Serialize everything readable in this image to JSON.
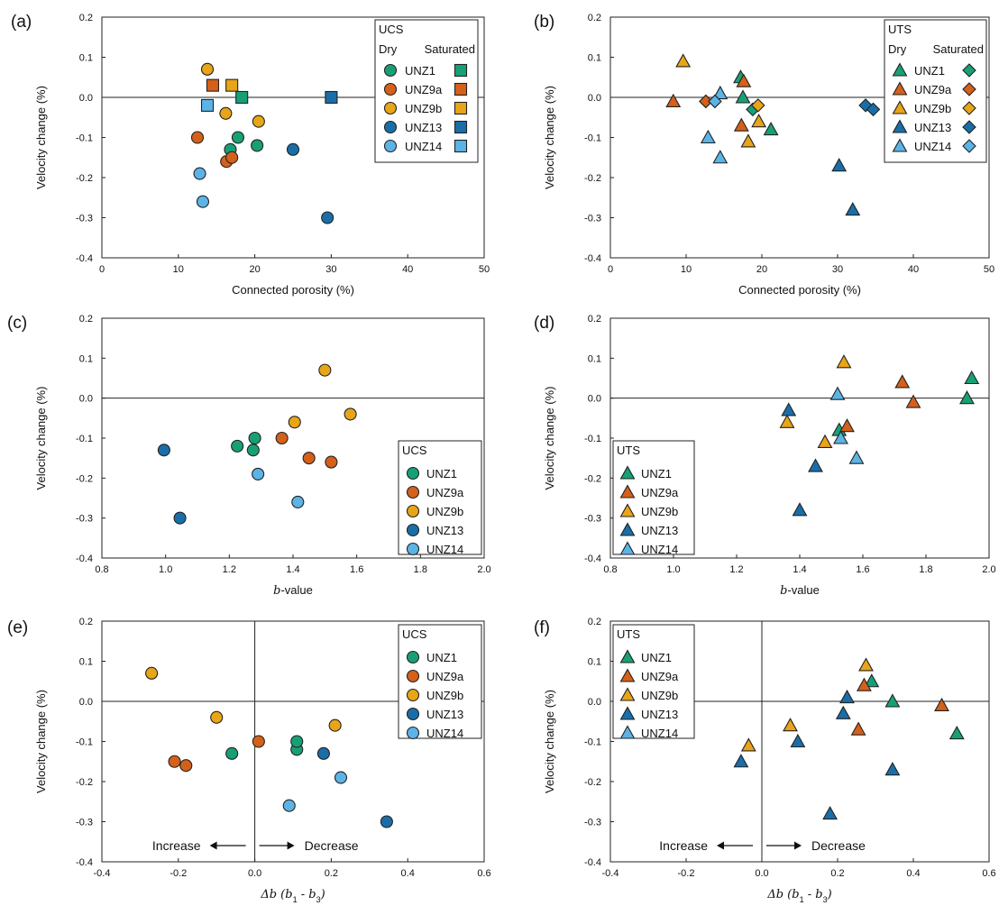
{
  "colors": {
    "UNZ1": "#17a076",
    "UNZ9a": "#d4601a",
    "UNZ9b": "#e8a517",
    "UNZ13": "#1a6ea8",
    "UNZ14": "#5cb3e6"
  },
  "chart_data": [
    {
      "panel": "(a)",
      "type": "scatter",
      "xlabel": "Connected porosity (%)",
      "ylabel": "Velocity change (%)",
      "xlim": [
        0,
        50
      ],
      "ylim": [
        -0.4,
        0.2
      ],
      "xticks": [
        "0",
        "10",
        "20",
        "30",
        "40",
        "50"
      ],
      "yticks": [
        "-0.4",
        "-0.3",
        "-0.2",
        "-0.1",
        "0.0",
        "0.1",
        "0.2"
      ],
      "legend": {
        "position": "top-right",
        "title": "UCS",
        "subtitle_dry": "Dry",
        "subtitle_sat": "Saturated",
        "labels": [
          "UNZ1",
          "UNZ9a",
          "UNZ9b",
          "UNZ13",
          "UNZ14"
        ]
      },
      "series": [
        {
          "name": "UNZ1",
          "condition": "Dry",
          "marker": "circle",
          "points": [
            [
              16.8,
              -0.13
            ],
            [
              17.8,
              -0.1
            ],
            [
              20.3,
              -0.12
            ]
          ]
        },
        {
          "name": "UNZ9a",
          "condition": "Dry",
          "marker": "circle",
          "points": [
            [
              12.5,
              -0.1
            ],
            [
              16.3,
              -0.16
            ],
            [
              17.0,
              -0.15
            ]
          ]
        },
        {
          "name": "UNZ9b",
          "condition": "Dry",
          "marker": "circle",
          "points": [
            [
              13.8,
              0.07
            ],
            [
              16.2,
              -0.04
            ],
            [
              20.5,
              -0.06
            ]
          ]
        },
        {
          "name": "UNZ13",
          "condition": "Dry",
          "marker": "circle",
          "points": [
            [
              25.0,
              -0.13
            ],
            [
              29.5,
              -0.3
            ]
          ]
        },
        {
          "name": "UNZ14",
          "condition": "Dry",
          "marker": "circle",
          "points": [
            [
              12.8,
              -0.19
            ],
            [
              13.2,
              -0.26
            ]
          ]
        },
        {
          "name": "UNZ1",
          "condition": "Saturated",
          "marker": "square",
          "points": [
            [
              18.3,
              0.0
            ]
          ]
        },
        {
          "name": "UNZ9a",
          "condition": "Saturated",
          "marker": "square",
          "points": [
            [
              14.5,
              0.03
            ]
          ]
        },
        {
          "name": "UNZ9b",
          "condition": "Saturated",
          "marker": "square",
          "points": [
            [
              17.0,
              0.03
            ]
          ]
        },
        {
          "name": "UNZ13",
          "condition": "Saturated",
          "marker": "square",
          "points": [
            [
              30.0,
              0.0
            ]
          ]
        },
        {
          "name": "UNZ14",
          "condition": "Saturated",
          "marker": "square",
          "points": [
            [
              13.8,
              -0.02
            ]
          ]
        }
      ]
    },
    {
      "panel": "(b)",
      "type": "scatter",
      "xlabel": "Connected porosity (%)",
      "ylabel": "Velocity change (%)",
      "xlim": [
        0,
        50
      ],
      "ylim": [
        -0.4,
        0.2
      ],
      "xticks": [
        "0",
        "10",
        "20",
        "30",
        "40",
        "50"
      ],
      "yticks": [
        "-0.4",
        "-0.3",
        "-0.2",
        "-0.1",
        "0.0",
        "0.1",
        "0.2"
      ],
      "legend": {
        "position": "top-right",
        "title": "UTS",
        "subtitle_dry": "Dry",
        "subtitle_sat": "Saturated",
        "labels": [
          "UNZ1",
          "UNZ9a",
          "UNZ9b",
          "UNZ13",
          "UNZ14"
        ]
      },
      "series": [
        {
          "name": "UNZ1",
          "condition": "Dry",
          "marker": "triangle",
          "points": [
            [
              17.2,
              0.05
            ],
            [
              17.5,
              0.0
            ],
            [
              21.2,
              -0.08
            ]
          ]
        },
        {
          "name": "UNZ9a",
          "condition": "Dry",
          "marker": "triangle",
          "points": [
            [
              8.3,
              -0.01
            ],
            [
              17.3,
              -0.07
            ],
            [
              17.6,
              0.04
            ]
          ]
        },
        {
          "name": "UNZ9b",
          "condition": "Dry",
          "marker": "triangle",
          "points": [
            [
              9.6,
              0.09
            ],
            [
              18.2,
              -0.11
            ],
            [
              19.6,
              -0.06
            ]
          ]
        },
        {
          "name": "UNZ13",
          "condition": "Dry",
          "marker": "triangle",
          "points": [
            [
              30.2,
              -0.17
            ],
            [
              32.0,
              -0.28
            ]
          ]
        },
        {
          "name": "UNZ14",
          "condition": "Dry",
          "marker": "triangle",
          "points": [
            [
              12.9,
              -0.1
            ],
            [
              14.5,
              0.01
            ],
            [
              14.5,
              -0.15
            ]
          ]
        },
        {
          "name": "UNZ1",
          "condition": "Saturated",
          "marker": "diamond",
          "points": [
            [
              18.8,
              -0.03
            ]
          ]
        },
        {
          "name": "UNZ9a",
          "condition": "Saturated",
          "marker": "diamond",
          "points": [
            [
              12.6,
              -0.01
            ]
          ]
        },
        {
          "name": "UNZ9b",
          "condition": "Saturated",
          "marker": "diamond",
          "points": [
            [
              19.5,
              -0.02
            ]
          ]
        },
        {
          "name": "UNZ13",
          "condition": "Saturated",
          "marker": "diamond",
          "points": [
            [
              33.7,
              -0.02
            ],
            [
              34.7,
              -0.03
            ]
          ]
        },
        {
          "name": "UNZ14",
          "condition": "Saturated",
          "marker": "diamond",
          "points": [
            [
              13.8,
              -0.01
            ]
          ]
        }
      ]
    },
    {
      "panel": "(c)",
      "type": "scatter",
      "xlabel": "b-value",
      "ylabel": "Velocity change (%)",
      "xlim": [
        0.8,
        2.0
      ],
      "ylim": [
        -0.4,
        0.2
      ],
      "xticks": [
        "0.8",
        "1.0",
        "1.2",
        "1.4",
        "1.6",
        "1.8",
        "2.0"
      ],
      "yticks": [
        "-0.4",
        "-0.3",
        "-0.2",
        "-0.1",
        "0.0",
        "0.1",
        "0.2"
      ],
      "legend": {
        "position": "bottom-right",
        "title": "UCS",
        "labels": [
          "UNZ1",
          "UNZ9a",
          "UNZ9b",
          "UNZ13",
          "UNZ14"
        ]
      },
      "series": [
        {
          "name": "UNZ1",
          "marker": "circle",
          "points": [
            [
              1.225,
              -0.12
            ],
            [
              1.275,
              -0.13
            ],
            [
              1.28,
              -0.1
            ]
          ]
        },
        {
          "name": "UNZ9a",
          "marker": "circle",
          "points": [
            [
              1.365,
              -0.1
            ],
            [
              1.45,
              -0.15
            ],
            [
              1.52,
              -0.16
            ]
          ]
        },
        {
          "name": "UNZ9b",
          "marker": "circle",
          "points": [
            [
              1.405,
              -0.06
            ],
            [
              1.5,
              0.07
            ],
            [
              1.58,
              -0.04
            ]
          ]
        },
        {
          "name": "UNZ13",
          "marker": "circle",
          "points": [
            [
              0.995,
              -0.13
            ],
            [
              1.045,
              -0.3
            ]
          ]
        },
        {
          "name": "UNZ14",
          "marker": "circle",
          "points": [
            [
              1.29,
              -0.19
            ],
            [
              1.415,
              -0.26
            ]
          ]
        }
      ]
    },
    {
      "panel": "(d)",
      "type": "scatter",
      "xlabel": "b-value",
      "ylabel": "Velocity change (%)",
      "xlim": [
        0.8,
        2.0
      ],
      "ylim": [
        -0.4,
        0.2
      ],
      "xticks": [
        "0.8",
        "1.0",
        "1.2",
        "1.4",
        "1.6",
        "1.8",
        "2.0"
      ],
      "yticks": [
        "-0.4",
        "-0.3",
        "-0.2",
        "-0.1",
        "0.0",
        "0.1",
        "0.2"
      ],
      "legend": {
        "position": "bottom-left",
        "title": "UTS",
        "labels": [
          "UNZ1",
          "UNZ9a",
          "UNZ9b",
          "UNZ13",
          "UNZ14"
        ]
      },
      "series": [
        {
          "name": "UNZ1",
          "marker": "triangle",
          "points": [
            [
              1.525,
              -0.08
            ],
            [
              1.93,
              0.0
            ],
            [
              1.945,
              0.05
            ]
          ]
        },
        {
          "name": "UNZ9a",
          "marker": "triangle",
          "points": [
            [
              1.55,
              -0.07
            ],
            [
              1.725,
              0.04
            ],
            [
              1.76,
              -0.01
            ]
          ]
        },
        {
          "name": "UNZ9b",
          "marker": "triangle",
          "points": [
            [
              1.36,
              -0.06
            ],
            [
              1.48,
              -0.11
            ],
            [
              1.54,
              0.09
            ]
          ]
        },
        {
          "name": "UNZ13",
          "marker": "triangle",
          "points": [
            [
              1.365,
              -0.03
            ],
            [
              1.4,
              -0.28
            ],
            [
              1.45,
              -0.17
            ]
          ]
        },
        {
          "name": "UNZ14",
          "marker": "triangle",
          "points": [
            [
              1.52,
              0.01
            ],
            [
              1.53,
              -0.1
            ],
            [
              1.58,
              -0.15
            ]
          ]
        }
      ]
    },
    {
      "panel": "(e)",
      "type": "scatter",
      "xlabel": "Δb (b1 - b3)",
      "ylabel": "Velocity change (%)",
      "xlim": [
        -0.4,
        0.6
      ],
      "ylim": [
        -0.4,
        0.2
      ],
      "xticks": [
        "-0.4",
        "-0.2",
        "0.0",
        "0.2",
        "0.4",
        "0.6"
      ],
      "yticks": [
        "-0.4",
        "-0.3",
        "-0.2",
        "-0.1",
        "0.0",
        "0.1",
        "0.2"
      ],
      "legend": {
        "position": "top-right",
        "title": "UCS",
        "labels": [
          "UNZ1",
          "UNZ9a",
          "UNZ9b",
          "UNZ13",
          "UNZ14"
        ]
      },
      "annotations": {
        "left": "Increase",
        "right": "Decrease"
      },
      "series": [
        {
          "name": "UNZ1",
          "marker": "circle",
          "points": [
            [
              -0.06,
              -0.13
            ],
            [
              0.11,
              -0.12
            ],
            [
              0.11,
              -0.1
            ]
          ]
        },
        {
          "name": "UNZ9a",
          "marker": "circle",
          "points": [
            [
              -0.21,
              -0.15
            ],
            [
              -0.18,
              -0.16
            ],
            [
              0.01,
              -0.1
            ]
          ]
        },
        {
          "name": "UNZ9b",
          "marker": "circle",
          "points": [
            [
              -0.27,
              0.07
            ],
            [
              -0.1,
              -0.04
            ],
            [
              0.21,
              -0.06
            ]
          ]
        },
        {
          "name": "UNZ13",
          "marker": "circle",
          "points": [
            [
              0.18,
              -0.13
            ],
            [
              0.345,
              -0.3
            ]
          ]
        },
        {
          "name": "UNZ14",
          "marker": "circle",
          "points": [
            [
              0.09,
              -0.26
            ],
            [
              0.225,
              -0.19
            ]
          ]
        }
      ]
    },
    {
      "panel": "(f)",
      "type": "scatter",
      "xlabel": "Δb (b1 - b3)",
      "ylabel": "Velocity change (%)",
      "xlim": [
        -0.4,
        0.6
      ],
      "ylim": [
        -0.4,
        0.2
      ],
      "xticks": [
        "-0.4",
        "-0.2",
        "0.0",
        "0.2",
        "0.4",
        "0.6"
      ],
      "yticks": [
        "-0.4",
        "-0.3",
        "-0.2",
        "-0.1",
        "0.0",
        "0.1",
        "0.2"
      ],
      "legend": {
        "position": "top-left",
        "title": "UTS",
        "labels": [
          "UNZ1",
          "UNZ9a",
          "UNZ9b",
          "UNZ13",
          "UNZ14"
        ]
      },
      "annotations": {
        "left": "Increase",
        "right": "Decrease"
      },
      "series": [
        {
          "name": "UNZ1",
          "marker": "triangle",
          "points": [
            [
              0.29,
              0.05
            ],
            [
              0.345,
              0.0
            ],
            [
              0.515,
              -0.08
            ]
          ]
        },
        {
          "name": "UNZ9a",
          "marker": "triangle",
          "points": [
            [
              0.255,
              -0.07
            ],
            [
              0.27,
              0.04
            ],
            [
              0.475,
              -0.01
            ]
          ]
        },
        {
          "name": "UNZ9b",
          "marker": "triangle",
          "points": [
            [
              -0.035,
              -0.11
            ],
            [
              0.075,
              -0.06
            ],
            [
              0.275,
              0.09
            ]
          ]
        },
        {
          "name": "UNZ13",
          "marker": "triangle",
          "points": [
            [
              -0.055,
              -0.15
            ],
            [
              0.095,
              -0.1
            ],
            [
              0.18,
              -0.28
            ],
            [
              0.215,
              -0.03
            ],
            [
              0.225,
              0.01
            ],
            [
              0.345,
              -0.17
            ]
          ]
        },
        {
          "name": "UNZ14",
          "marker": "triangle",
          "points": []
        }
      ]
    }
  ]
}
